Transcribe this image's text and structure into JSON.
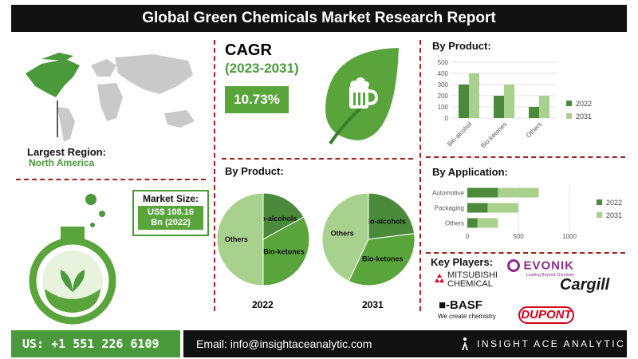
{
  "header": {
    "title": "Global Green Chemicals Market Research Report"
  },
  "region": {
    "label": "Largest Region:",
    "value": "North America"
  },
  "market_size": {
    "label": "Market Size:",
    "value_line1": "US$ 108.16",
    "value_line2": "Bn (2022)"
  },
  "cagr": {
    "label": "CAGR",
    "period": "(2023-2031)",
    "value": "10.73%"
  },
  "sections": {
    "by_product": "By Product:",
    "by_product_bar": "By Product:",
    "by_application": "By Application:",
    "key_players": "Key Players:"
  },
  "pies": [
    {
      "year": "2022",
      "labels": [
        "Bio-alcohols",
        "Bio-ketones",
        "Others"
      ]
    },
    {
      "year": "2031",
      "labels": [
        "Bio-alcohols",
        "Bio-ketones",
        "Others"
      ]
    }
  ],
  "key_players": {
    "mitsubishi_1": "MITSUBISHI",
    "mitsubishi_2": "CHEMICAL",
    "evonik": "EVONIK",
    "evonik_tag": "Leading Beyond Chemistry",
    "cargill": "Cargill",
    "basf": "■-BASF",
    "basf_tag": "We create chemistry",
    "dupont": "DUPONT"
  },
  "footer": {
    "phone": "US: +1 551 226 6109",
    "email": "Email: info@insightaceanalytic.com",
    "brand": "INSIGHT ACE ANALYTIC"
  },
  "colors": {
    "dark_green": "#4a8a3a",
    "light_green": "#a9d18e",
    "mid_green": "#5aa43c"
  },
  "chart_data": [
    {
      "type": "pie",
      "title": "2022",
      "categories": [
        "Bio-alcohols",
        "Bio-ketones",
        "Others"
      ],
      "values": [
        17,
        33,
        50
      ]
    },
    {
      "type": "pie",
      "title": "2031",
      "categories": [
        "Bio-alcohols",
        "Bio-ketones",
        "Others"
      ],
      "values": [
        23,
        34,
        43
      ]
    },
    {
      "type": "bar",
      "title": "By Product:",
      "categories": [
        "Bio-alcohol",
        "Bio-ketones",
        "Others"
      ],
      "series": [
        {
          "name": "2022",
          "values": [
            300,
            200,
            100
          ]
        },
        {
          "name": "2031",
          "values": [
            400,
            300,
            200
          ]
        }
      ],
      "ylim": [
        0,
        500
      ],
      "yticks": [
        0,
        100,
        200,
        300,
        400,
        500
      ],
      "legend": "right"
    },
    {
      "type": "bar",
      "orientation": "horizontal",
      "stacked": true,
      "title": "By Application:",
      "categories": [
        "Automotive",
        "Packaging",
        "Others"
      ],
      "series": [
        {
          "name": "2022",
          "values": [
            300,
            200,
            100
          ]
        },
        {
          "name": "2031",
          "values": [
            400,
            300,
            200
          ]
        }
      ],
      "xlim": [
        0,
        1000
      ],
      "xticks": [
        0,
        500,
        1000
      ],
      "legend": "right"
    }
  ]
}
